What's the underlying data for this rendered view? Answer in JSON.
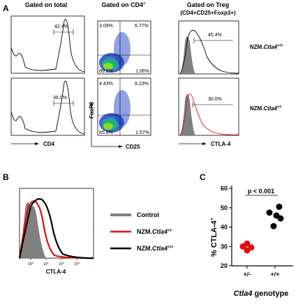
{
  "panel_a": {
    "letter": "A",
    "col_titles": [
      "Gated on total",
      "Gated on CD4",
      "Gated on Treg"
    ],
    "col_title_sup": "+",
    "col3_subtitle": "(CD4+CD25+Foxp3+)",
    "rows": [
      {
        "label_prefix": "NZM.",
        "label_gene": "Ctla4",
        "label_sup": "+/+",
        "hist_gate_pct": "42.4%",
        "quad_ul": "3.09%",
        "quad_ur": "6.77%",
        "quad_ll": "89.1%",
        "quad_lr": "1.06%",
        "ctla_gate_pct": "45.4%"
      },
      {
        "label_prefix": "NZM.",
        "label_gene": "Ctla4",
        "label_sup": "+/-",
        "hist_gate_pct": "36.0%",
        "quad_ul": "4.43%",
        "quad_ur": "8.23%",
        "quad_ll": "85.8%",
        "quad_lr": "1.57%",
        "ctla_gate_pct": "30.0%"
      }
    ],
    "x_axes": [
      "CD4",
      "CD25",
      "CTLA-4"
    ],
    "y_axis_col2": "FoxP3"
  },
  "panel_b": {
    "letter": "B",
    "xlabel": "CTLA-4",
    "ticks": [
      "10",
      "10",
      "10",
      "10"
    ],
    "tick_exp": [
      "0",
      "1",
      "2",
      "3"
    ],
    "legend": [
      {
        "prefix": "",
        "gene": "",
        "text": "Control",
        "sup": "",
        "color": "#808080"
      },
      {
        "prefix": "NZM.",
        "gene": "Ctla4",
        "text": "",
        "sup": "+/-",
        "color": "#e01010"
      },
      {
        "prefix": "NZM.",
        "gene": "Ctla4",
        "text": "",
        "sup": "+/+",
        "color": "#000000"
      }
    ]
  },
  "panel_c": {
    "letter": "C",
    "ylabel": "% CTLA-4",
    "ylabel_sup": "+",
    "xlabel_gene": "Ctla4",
    "xlabel_rest": " genotype",
    "significance": "p < 0.001",
    "colors": {
      "het": "#e01010",
      "wt": "#000000"
    },
    "chart_data": {
      "type": "scatter",
      "categories": [
        "+/-",
        "+/+"
      ],
      "ylim": [
        20,
        60
      ],
      "yticks": [
        "20",
        "30",
        "40",
        "50",
        "60"
      ],
      "series": [
        {
          "category": "+/-",
          "values": [
            31.5,
            30.0,
            29.5,
            28.0
          ]
        },
        {
          "category": "+/+",
          "values": [
            50.5,
            47.5,
            46.0,
            44.5,
            40.5
          ]
        }
      ]
    }
  }
}
